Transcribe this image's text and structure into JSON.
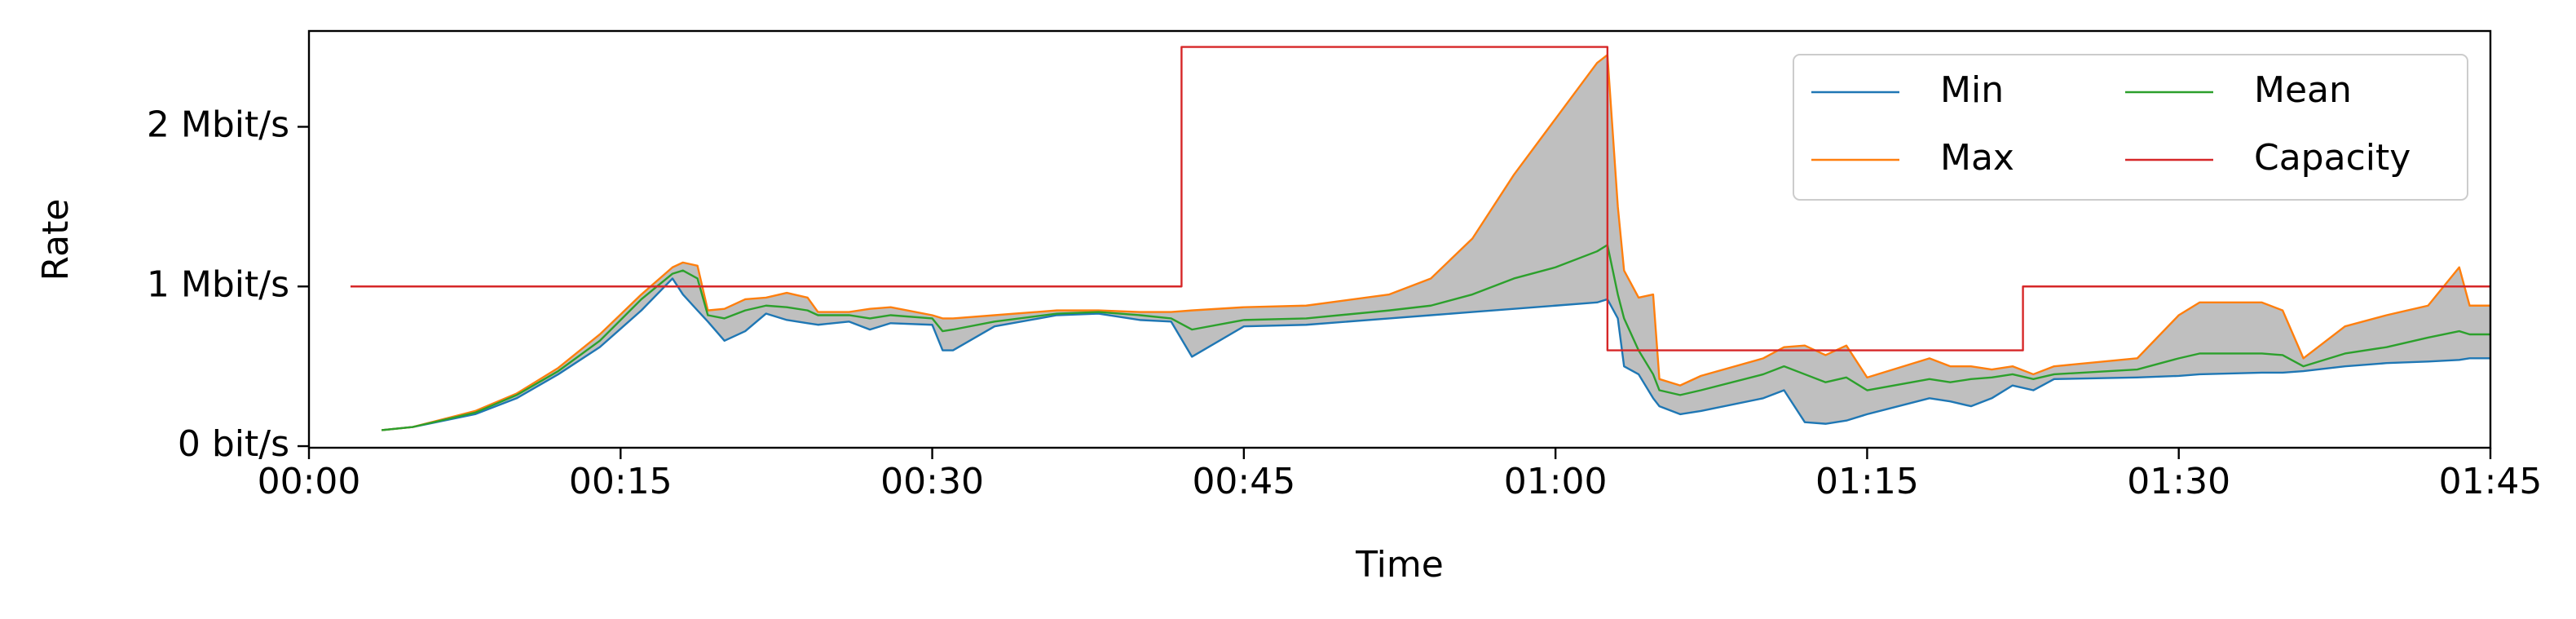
{
  "chart_data": {
    "type": "line",
    "xlabel": "Time",
    "ylabel": "Rate",
    "x": [
      3.5,
      5,
      8,
      10,
      12,
      14,
      16,
      17.5,
      18,
      18.7,
      19.2,
      20,
      21,
      22,
      23,
      24,
      24.5,
      26,
      27,
      28,
      30,
      30.5,
      31,
      33,
      36,
      38,
      40,
      41.5,
      42.5,
      45,
      48,
      52,
      54,
      56,
      58,
      60,
      62,
      62.5,
      63,
      63.3,
      64,
      64.7,
      65,
      66,
      67,
      70,
      71,
      72,
      73,
      74,
      75,
      78,
      79,
      80,
      81,
      82,
      83,
      84,
      88,
      90,
      91,
      94,
      95,
      96,
      98,
      100,
      102,
      103.5,
      104,
      105
    ],
    "series": [
      {
        "name": "Min",
        "color": "#1f77b4",
        "values": [
          0.1,
          0.12,
          0.2,
          0.3,
          0.45,
          0.62,
          0.85,
          1.05,
          0.95,
          0.85,
          0.78,
          0.66,
          0.72,
          0.83,
          0.79,
          0.77,
          0.76,
          0.78,
          0.73,
          0.77,
          0.76,
          0.6,
          0.6,
          0.75,
          0.82,
          0.83,
          0.79,
          0.78,
          0.56,
          0.75,
          0.76,
          0.8,
          0.82,
          0.84,
          0.86,
          0.88,
          0.9,
          0.92,
          0.8,
          0.5,
          0.45,
          0.3,
          0.25,
          0.2,
          0.22,
          0.3,
          0.35,
          0.15,
          0.14,
          0.16,
          0.2,
          0.3,
          0.28,
          0.25,
          0.3,
          0.38,
          0.35,
          0.42,
          0.43,
          0.44,
          0.45,
          0.46,
          0.46,
          0.47,
          0.5,
          0.52,
          0.53,
          0.54,
          0.55,
          0.55
        ]
      },
      {
        "name": "Max",
        "color": "#ff7f0e",
        "values": [
          0.1,
          0.12,
          0.22,
          0.33,
          0.49,
          0.7,
          0.95,
          1.12,
          1.15,
          1.13,
          0.85,
          0.86,
          0.92,
          0.93,
          0.96,
          0.93,
          0.84,
          0.84,
          0.86,
          0.87,
          0.82,
          0.8,
          0.8,
          0.82,
          0.85,
          0.85,
          0.84,
          0.84,
          0.85,
          0.87,
          0.88,
          0.95,
          1.05,
          1.3,
          1.7,
          2.05,
          2.4,
          2.45,
          1.5,
          1.1,
          0.93,
          0.95,
          0.42,
          0.38,
          0.44,
          0.55,
          0.62,
          0.63,
          0.57,
          0.63,
          0.43,
          0.55,
          0.5,
          0.5,
          0.48,
          0.5,
          0.45,
          0.5,
          0.55,
          0.82,
          0.9,
          0.9,
          0.85,
          0.55,
          0.75,
          0.82,
          0.88,
          1.12,
          0.88,
          0.88
        ]
      },
      {
        "name": "Mean",
        "color": "#2ca02c",
        "values": [
          0.1,
          0.12,
          0.21,
          0.32,
          0.47,
          0.66,
          0.92,
          1.08,
          1.1,
          1.05,
          0.82,
          0.8,
          0.85,
          0.88,
          0.87,
          0.85,
          0.82,
          0.82,
          0.8,
          0.82,
          0.8,
          0.72,
          0.73,
          0.78,
          0.83,
          0.84,
          0.82,
          0.8,
          0.73,
          0.79,
          0.8,
          0.85,
          0.88,
          0.95,
          1.05,
          1.12,
          1.22,
          1.26,
          0.95,
          0.8,
          0.6,
          0.45,
          0.35,
          0.32,
          0.35,
          0.45,
          0.5,
          0.45,
          0.4,
          0.43,
          0.35,
          0.42,
          0.4,
          0.42,
          0.43,
          0.45,
          0.42,
          0.45,
          0.48,
          0.55,
          0.58,
          0.58,
          0.57,
          0.5,
          0.58,
          0.62,
          0.68,
          0.72,
          0.7,
          0.7
        ]
      },
      {
        "name": "Capacity",
        "color": "#d62728",
        "x": [
          2,
          42,
          42,
          62.5,
          62.5,
          82.5,
          82.5,
          105
        ],
        "values": [
          1,
          1,
          2.5,
          2.5,
          0.6,
          0.6,
          1,
          1
        ]
      }
    ],
    "band_color": "#bfbfbf",
    "xlim": [
      0,
      105
    ],
    "xticks": [
      {
        "value": 0,
        "label": "00:00"
      },
      {
        "value": 15,
        "label": "00:15"
      },
      {
        "value": 30,
        "label": "00:30"
      },
      {
        "value": 45,
        "label": "00:45"
      },
      {
        "value": 60,
        "label": "01:00"
      },
      {
        "value": 75,
        "label": "01:15"
      },
      {
        "value": 90,
        "label": "01:30"
      },
      {
        "value": 105,
        "label": "01:45"
      }
    ],
    "ylim": [
      -0.01,
      2.6
    ],
    "yticks": [
      {
        "value": 0,
        "label": "0 bit/s"
      },
      {
        "value": 1,
        "label": "1 Mbit/s"
      },
      {
        "value": 2,
        "label": "2 Mbit/s"
      }
    ],
    "legend": "upper right",
    "legend_columns": 2,
    "grid": false
  }
}
